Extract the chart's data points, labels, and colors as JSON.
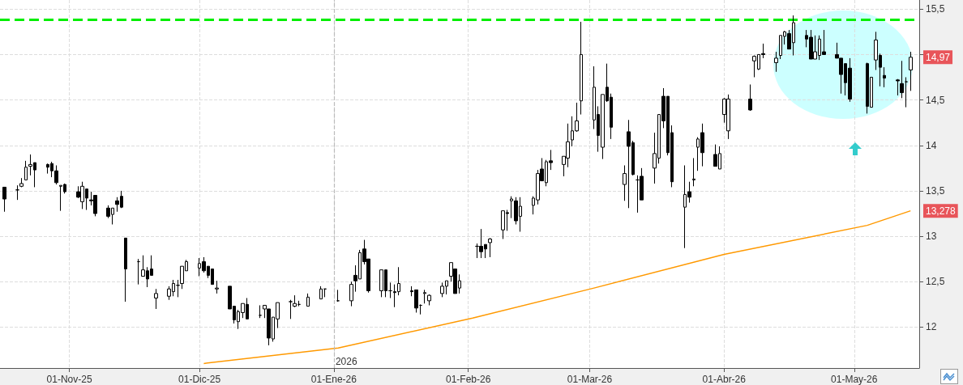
{
  "chart_data": {
    "type": "candlestick",
    "color": "#000000",
    "x": [
      "2025-10-17",
      "2025-10-20",
      "2025-10-21",
      "2025-10-22",
      "2025-10-23",
      "2025-10-24",
      "2025-10-27",
      "2025-10-28",
      "2025-10-29",
      "2025-10-30",
      "2025-10-31",
      "2025-11-03",
      "2025-11-04",
      "2025-11-05",
      "2025-11-06",
      "2025-11-07",
      "2025-11-10",
      "2025-11-11",
      "2025-11-12",
      "2025-11-13",
      "2025-11-14",
      "2025-11-17",
      "2025-11-18",
      "2025-11-19",
      "2025-11-20",
      "2025-11-21",
      "2025-11-24",
      "2025-11-25",
      "2025-11-26",
      "2025-11-27",
      "2025-11-28",
      "2025-12-01",
      "2025-12-02",
      "2025-12-03",
      "2025-12-04",
      "2025-12-05",
      "2025-12-08",
      "2025-12-09",
      "2025-12-10",
      "2025-12-11",
      "2025-12-12",
      "2025-12-15",
      "2025-12-16",
      "2025-12-17",
      "2025-12-18",
      "2025-12-19",
      "2025-12-22",
      "2025-12-23",
      "2025-12-24",
      "2025-12-26",
      "2025-12-29",
      "2025-12-30",
      "2026-01-02",
      "2026-01-05",
      "2026-01-06",
      "2026-01-07",
      "2026-01-08",
      "2026-01-09",
      "2026-01-12",
      "2026-01-13",
      "2026-01-14",
      "2026-01-15",
      "2026-01-16",
      "2026-01-19",
      "2026-01-20",
      "2026-01-21",
      "2026-01-22",
      "2026-01-23",
      "2026-01-26",
      "2026-01-27",
      "2026-01-28",
      "2026-01-29",
      "2026-01-30",
      "2026-02-03",
      "2026-02-04",
      "2026-02-05",
      "2026-02-06",
      "2026-02-09",
      "2026-02-10",
      "2026-02-11",
      "2026-02-12",
      "2026-02-13",
      "2026-02-16",
      "2026-02-17",
      "2026-02-18",
      "2026-02-19",
      "2026-02-20",
      "2026-02-23",
      "2026-02-24",
      "2026-02-25",
      "2026-02-26",
      "2026-02-27",
      "2026-03-02",
      "2026-03-03",
      "2026-03-04",
      "2026-03-05",
      "2026-03-06",
      "2026-03-09",
      "2026-03-10",
      "2026-03-11",
      "2026-03-12",
      "2026-03-13",
      "2026-03-16",
      "2026-03-17",
      "2026-03-18",
      "2026-03-19",
      "2026-03-20",
      "2026-03-23",
      "2026-03-24",
      "2026-03-25",
      "2026-03-26",
      "2026-03-27",
      "2026-03-30",
      "2026-03-31",
      "2026-04-01",
      "2026-04-02",
      "2026-04-07",
      "2026-04-08",
      "2026-04-09",
      "2026-04-10",
      "2026-04-13",
      "2026-04-14",
      "2026-04-15",
      "2026-04-16",
      "2026-04-17",
      "2026-04-20",
      "2026-04-21",
      "2026-04-22",
      "2026-04-23",
      "2026-04-24",
      "2026-04-27",
      "2026-04-28",
      "2026-04-29",
      "2026-04-30",
      "2026-05-04",
      "2026-05-05",
      "2026-05-06",
      "2026-05-07",
      "2026-05-08",
      "2026-05-11",
      "2026-05-12",
      "2026-05-13",
      "2026-05-14"
    ],
    "ohlc": [
      [
        13.54,
        13.54,
        13.27,
        13.41
      ],
      [
        13.51,
        13.56,
        13.4,
        13.51
      ],
      [
        13.55,
        13.64,
        13.54,
        13.58
      ],
      [
        13.62,
        13.83,
        13.62,
        13.76
      ],
      [
        13.77,
        13.9,
        13.67,
        13.79
      ],
      [
        13.81,
        13.81,
        13.54,
        13.73
      ],
      [
        13.79,
        13.8,
        13.69,
        13.76
      ],
      [
        13.8,
        13.82,
        13.65,
        13.72
      ],
      [
        13.72,
        13.78,
        13.57,
        13.59
      ],
      [
        13.55,
        13.56,
        13.28,
        13.56
      ],
      [
        13.57,
        13.58,
        13.47,
        13.49
      ],
      [
        13.49,
        13.55,
        13.42,
        13.43
      ],
      [
        13.38,
        13.6,
        13.3,
        13.55
      ],
      [
        13.52,
        13.52,
        13.29,
        13.42
      ],
      [
        13.4,
        13.49,
        13.34,
        13.39
      ],
      [
        13.45,
        13.45,
        13.22,
        13.25
      ],
      [
        13.31,
        13.34,
        13.2,
        13.22
      ],
      [
        13.24,
        13.31,
        13.13,
        13.31
      ],
      [
        13.39,
        13.43,
        13.27,
        13.35
      ],
      [
        13.44,
        13.5,
        13.31,
        13.32
      ],
      [
        12.98,
        12.98,
        12.28,
        12.64
      ],
      [
        12.72,
        12.75,
        12.47,
        12.72
      ],
      [
        12.56,
        12.79,
        12.56,
        12.63
      ],
      [
        12.62,
        12.66,
        12.44,
        12.53
      ],
      [
        12.64,
        12.79,
        12.57,
        12.57
      ],
      [
        12.32,
        12.42,
        12.2,
        12.37
      ],
      [
        12.34,
        12.45,
        12.3,
        12.42
      ],
      [
        12.39,
        12.52,
        12.34,
        12.48
      ],
      [
        12.46,
        12.52,
        12.33,
        12.46
      ],
      [
        12.48,
        12.67,
        12.42,
        12.67
      ],
      [
        12.62,
        12.74,
        12.62,
        12.72
      ],
      [
        12.65,
        12.76,
        12.56,
        12.7
      ],
      [
        12.72,
        12.77,
        12.6,
        12.62
      ],
      [
        12.67,
        12.67,
        12.54,
        12.57
      ],
      [
        12.64,
        12.64,
        12.47,
        12.47
      ],
      [
        12.42,
        12.51,
        12.37,
        12.43
      ],
      [
        12.45,
        12.45,
        12.2,
        12.2
      ],
      [
        12.23,
        12.23,
        12.04,
        12.08
      ],
      [
        12.06,
        12.19,
        11.98,
        12.17
      ],
      [
        12.16,
        12.26,
        12.1,
        12.26
      ],
      [
        12.25,
        12.32,
        12.09,
        12.09
      ],
      [
        12.13,
        12.24,
        12.1,
        12.13
      ],
      [
        12.2,
        12.24,
        12.1,
        12.24
      ],
      [
        12.2,
        12.2,
        11.8,
        11.88
      ],
      [
        11.87,
        12.11,
        11.84,
        12.11
      ],
      [
        12.09,
        12.27,
        11.99,
        12.27
      ],
      [
        12.28,
        12.3,
        12.09,
        12.28
      ],
      [
        12.23,
        12.35,
        12.22,
        12.26
      ],
      [
        12.25,
        12.29,
        12.23,
        12.25
      ],
      [
        12.23,
        12.37,
        12.23,
        12.33
      ],
      [
        12.31,
        12.45,
        12.31,
        12.42
      ],
      [
        12.42,
        12.42,
        12.33,
        12.42
      ],
      [
        12.29,
        12.41,
        12.28,
        12.29
      ],
      [
        12.29,
        12.5,
        12.23,
        12.47
      ],
      [
        12.57,
        12.68,
        12.39,
        12.51
      ],
      [
        12.53,
        12.85,
        12.53,
        12.82
      ],
      [
        12.86,
        12.96,
        12.69,
        12.72
      ],
      [
        12.75,
        12.75,
        12.38,
        12.4
      ],
      [
        12.4,
        12.63,
        12.33,
        12.63
      ],
      [
        12.63,
        12.63,
        12.33,
        12.4
      ],
      [
        12.4,
        12.49,
        12.32,
        12.4
      ],
      [
        12.39,
        12.47,
        12.22,
        12.38
      ],
      [
        12.39,
        12.66,
        12.35,
        12.48
      ],
      [
        12.4,
        12.45,
        12.34,
        12.39
      ],
      [
        12.41,
        12.41,
        12.16,
        12.21
      ],
      [
        12.24,
        12.25,
        12.14,
        12.24
      ],
      [
        12.37,
        12.41,
        12.26,
        12.38
      ],
      [
        12.29,
        12.36,
        12.24,
        12.35
      ],
      [
        12.37,
        12.49,
        12.33,
        12.45
      ],
      [
        12.45,
        12.51,
        12.36,
        12.51
      ],
      [
        12.56,
        12.71,
        12.5,
        12.71
      ],
      [
        12.64,
        12.64,
        12.37,
        12.37
      ],
      [
        12.43,
        12.58,
        12.37,
        12.51
      ],
      [
        12.89,
        12.92,
        12.76,
        12.89
      ],
      [
        12.89,
        13.08,
        12.76,
        12.83
      ],
      [
        12.91,
        12.91,
        12.76,
        12.86
      ],
      [
        12.93,
        12.98,
        12.77,
        12.97
      ],
      [
        13.07,
        13.28,
        12.97,
        13.28
      ],
      [
        13.26,
        13.29,
        13.06,
        13.25
      ],
      [
        13.39,
        13.44,
        13.2,
        13.41
      ],
      [
        13.39,
        13.43,
        13.13,
        13.17
      ],
      [
        13.22,
        13.43,
        13.05,
        13.33
      ],
      [
        13.34,
        13.44,
        13.24,
        13.42
      ],
      [
        13.4,
        13.73,
        13.35,
        13.69
      ],
      [
        13.74,
        13.86,
        13.61,
        13.61
      ],
      [
        13.59,
        13.84,
        13.55,
        13.82
      ],
      [
        13.83,
        13.95,
        13.73,
        13.81
      ],
      [
        13.79,
        13.88,
        13.66,
        13.88
      ],
      [
        13.86,
        14.24,
        13.76,
        14.04
      ],
      [
        14.06,
        14.32,
        13.99,
        14.16
      ],
      [
        14.16,
        14.47,
        14.15,
        14.27
      ],
      [
        14.49,
        15.36,
        14.34,
        15.0
      ],
      [
        14.28,
        14.87,
        14.18,
        14.64
      ],
      [
        14.34,
        14.43,
        13.93,
        14.11
      ],
      [
        13.98,
        14.56,
        13.85,
        14.56
      ],
      [
        14.64,
        14.9,
        14.48,
        14.49
      ],
      [
        14.53,
        14.57,
        14.07,
        14.2
      ],
      [
        13.57,
        13.78,
        13.39,
        13.69
      ],
      [
        14.15,
        14.28,
        13.31,
        13.99
      ],
      [
        14.03,
        14.05,
        13.67,
        13.68
      ],
      [
        13.62,
        13.67,
        13.26,
        13.62
      ],
      [
        13.66,
        13.75,
        13.4,
        13.4
      ],
      [
        13.75,
        14.14,
        13.58,
        13.91
      ],
      [
        13.86,
        14.34,
        13.8,
        14.34
      ],
      [
        14.54,
        14.63,
        14.19,
        14.27
      ],
      [
        14.54,
        14.54,
        13.89,
        13.92
      ],
      [
        14.14,
        14.22,
        13.54,
        13.6
      ],
      [
        13.32,
        13.78,
        12.87,
        13.46
      ],
      [
        13.49,
        13.6,
        13.37,
        13.43
      ],
      [
        13.62,
        13.86,
        13.55,
        13.63
      ],
      [
        13.98,
        14.09,
        13.72,
        14.07
      ],
      [
        14.14,
        14.24,
        13.77,
        13.92
      ],
      [
        13.9,
        14.01,
        13.77,
        13.77
      ],
      [
        13.74,
        13.99,
        13.74,
        13.91
      ],
      [
        14.34,
        14.52,
        14.25,
        14.51
      ],
      [
        14.16,
        14.56,
        14.07,
        14.51
      ],
      [
        14.51,
        14.67,
        14.38,
        14.39
      ],
      [
        14.93,
        14.99,
        14.75,
        14.98
      ],
      [
        14.84,
        15.0,
        14.83,
        15.0
      ],
      [
        15.01,
        15.12,
        14.96,
        15.0
      ],
      [
        14.91,
        15.03,
        14.81,
        14.96
      ],
      [
        14.99,
        15.21,
        14.95,
        15.21
      ],
      [
        15.2,
        15.26,
        15.11,
        15.25
      ],
      [
        15.23,
        15.27,
        15.06,
        15.06
      ],
      [
        15.13,
        15.43,
        14.99,
        15.35
      ],
      [
        15.21,
        15.27,
        15.08,
        15.17
      ],
      [
        15.19,
        15.27,
        14.95,
        14.95
      ],
      [
        14.95,
        15.21,
        14.95,
        15.03
      ],
      [
        14.99,
        15.21,
        14.94,
        15.17
      ],
      [
        15.03,
        15.27,
        15.0,
        15.0
      ],
      [
        15.0,
        15.13,
        14.96,
        14.96
      ],
      [
        14.96,
        14.96,
        14.57,
        14.78
      ],
      [
        14.9,
        14.9,
        14.55,
        14.69
      ],
      [
        14.85,
        14.96,
        14.48,
        14.51
      ],
      [
        14.9,
        14.91,
        14.35,
        14.43
      ],
      [
        14.42,
        14.75,
        14.42,
        14.75
      ],
      [
        14.94,
        15.25,
        14.83,
        15.16
      ],
      [
        14.99,
        15.01,
        14.65,
        14.86
      ],
      [
        14.77,
        14.86,
        14.64,
        14.74
      ],
      [
        14.72,
        14.73,
        14.55,
        14.71
      ],
      [
        14.68,
        14.93,
        14.52,
        14.58
      ],
      [
        14.7,
        14.75,
        14.42,
        14.7
      ],
      [
        14.83,
        15.03,
        14.6,
        14.97
      ]
    ],
    "series": [
      {
        "type": "line",
        "color": "#ff9900",
        "x": [
          "2025-12-02",
          "2026-01-02",
          "2026-02-02",
          "2026-03-02",
          "2026-04-01",
          "2026-05-04",
          "2026-05-14"
        ],
        "values": [
          11.6,
          11.77,
          12.1,
          12.43,
          12.8,
          13.12,
          13.28
        ]
      }
    ],
    "xlim": [
      "2025-10-16",
      "2026-05-16"
    ],
    "xticks": [
      {
        "value": "2025-11-01",
        "label": "01-Nov-25"
      },
      {
        "value": "2025-12-01",
        "label": "01-Dic-25"
      },
      {
        "value": "2026-01-01",
        "label": "01-Ene-26"
      },
      {
        "value": "2026-02-01",
        "label": "01-Feb-26"
      },
      {
        "value": "2026-03-01",
        "label": "01-Mar-26"
      },
      {
        "value": "2026-04-01",
        "label": "01-Abr-26"
      },
      {
        "value": "2026-05-01",
        "label": "01-May-26"
      }
    ],
    "ylim": [
      11.55,
      15.6
    ],
    "yticks": [
      {
        "value": 12,
        "label": "12"
      },
      {
        "value": 12.5,
        "label": "12,5"
      },
      {
        "value": 13,
        "label": "13"
      },
      {
        "value": 13.5,
        "label": "13,5"
      },
      {
        "value": 14,
        "label": "14"
      },
      {
        "value": 14.5,
        "label": "14,5"
      },
      {
        "value": 15,
        "label": null
      },
      {
        "value": 15.5,
        "label": "15,5"
      }
    ],
    "grid": true,
    "ref_lines": [
      {
        "axis": "y",
        "value": 15.38,
        "color": "#00ee00",
        "line_style": "dashed"
      },
      {
        "axis": "x",
        "value": "2026-01-01",
        "label": "2026",
        "color": "#bbbbbb",
        "line_style": "dashed"
      }
    ],
    "annotations": [
      {
        "text": "14,97",
        "x": "2026-05-14",
        "y": 14.97
      },
      {
        "text": "13,278",
        "x": "2026-05-14",
        "y": 13.278
      }
    ]
  }
}
